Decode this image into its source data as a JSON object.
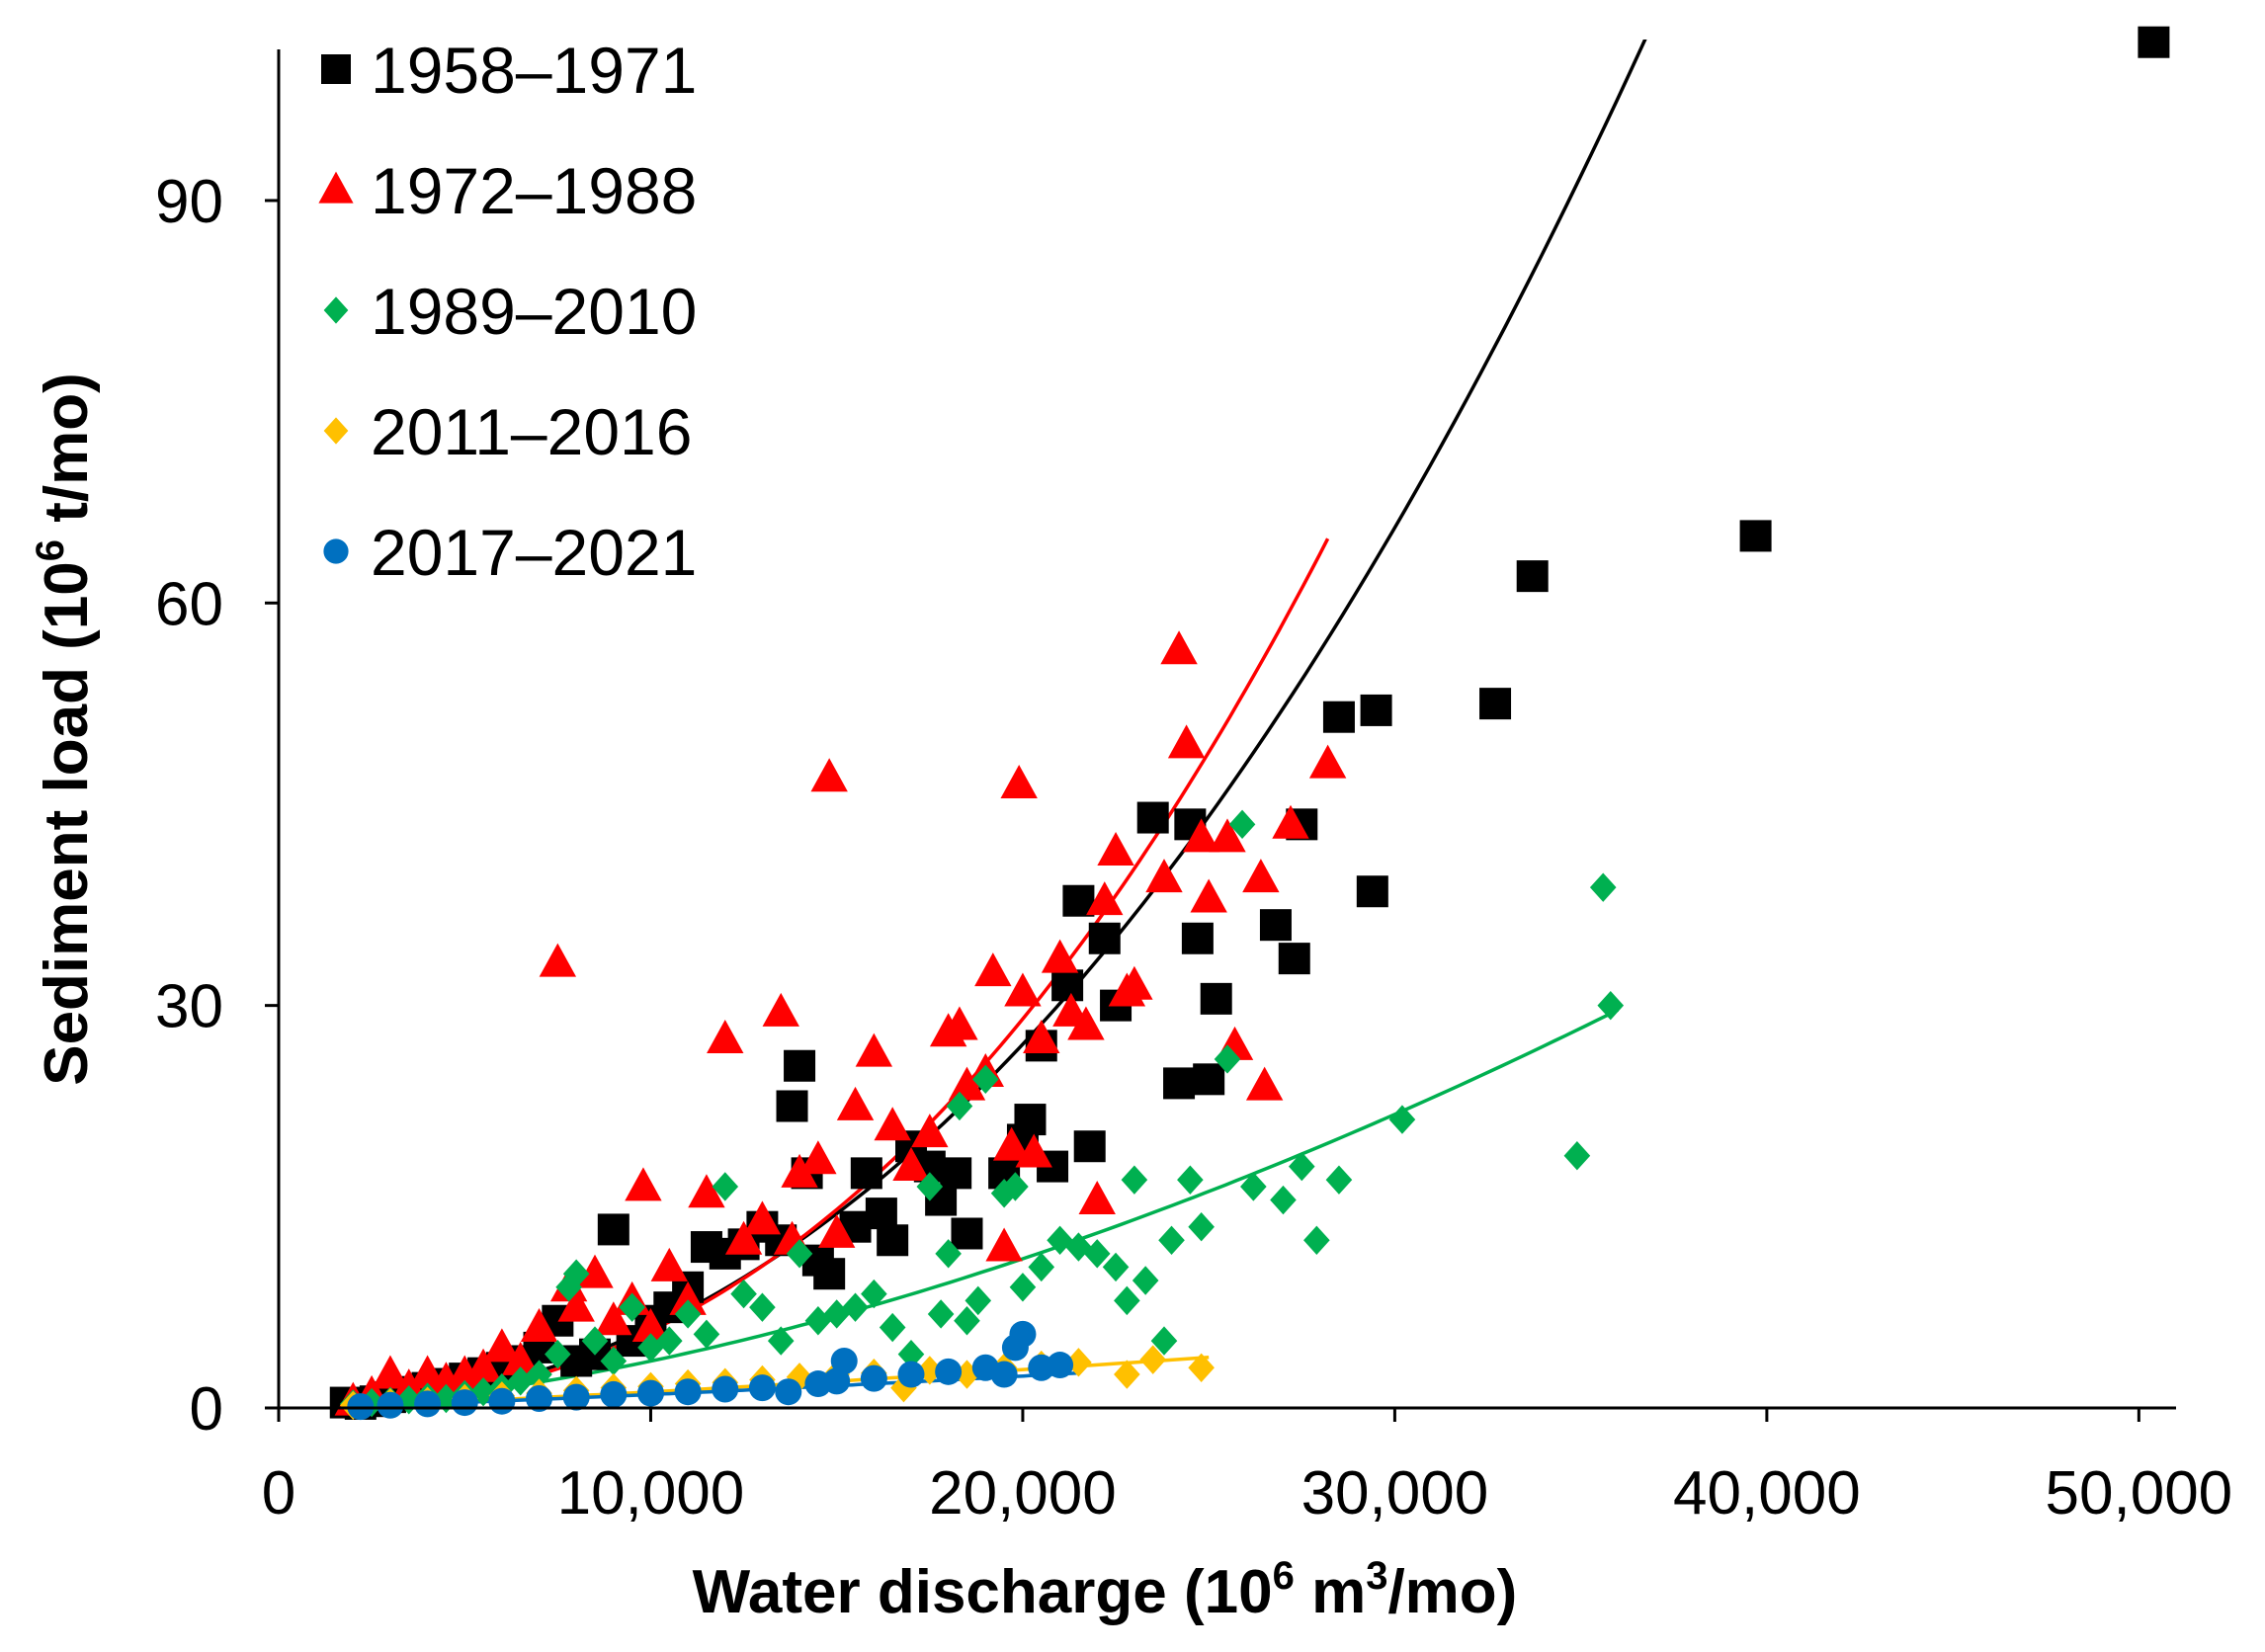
{
  "chart_data": {
    "type": "scatter",
    "xlabel": {
      "main": "Water discharge (10",
      "sup1": "6",
      "mid": " m",
      "sup2": "3",
      "end": "/mo)"
    },
    "ylabel": {
      "main": "Sediment load (10",
      "sup1": "6",
      "end": " t/mo)"
    },
    "xlim": [
      0,
      51000
    ],
    "ylim": [
      0,
      102
    ],
    "xticks": [
      0,
      10000,
      20000,
      30000,
      40000,
      50000
    ],
    "xtick_labels": [
      "0",
      "10,000",
      "20,000",
      "30,000",
      "40,000",
      "50,000"
    ],
    "yticks": [
      0,
      30,
      60,
      90
    ],
    "ytick_labels": [
      "0",
      "30",
      "60",
      "90"
    ],
    "legend_position": "top-left",
    "series": [
      {
        "name": "1958–1971",
        "color": "#000000",
        "marker": "square",
        "trend": {
          "a": 1.14e-08,
          "b": 2.18,
          "x_range": [
            1800,
            42000
          ]
        },
        "points": [
          [
            1800,
            0.4
          ],
          [
            2200,
            0.3
          ],
          [
            2600,
            0.5
          ],
          [
            3000,
            0.8
          ],
          [
            3500,
            1.2
          ],
          [
            4000,
            1.5
          ],
          [
            4500,
            1.8
          ],
          [
            5000,
            2.2
          ],
          [
            5500,
            2.6
          ],
          [
            6000,
            3.0
          ],
          [
            6500,
            3.5
          ],
          [
            7000,
            4.5
          ],
          [
            7500,
            6.5
          ],
          [
            8000,
            3.5
          ],
          [
            8500,
            4.0
          ],
          [
            9000,
            13.3
          ],
          [
            9500,
            5.0
          ],
          [
            10000,
            6.5
          ],
          [
            10500,
            7.5
          ],
          [
            11000,
            9.0
          ],
          [
            11500,
            12.0
          ],
          [
            12000,
            11.5
          ],
          [
            12500,
            12.2
          ],
          [
            13000,
            13.5
          ],
          [
            13500,
            12.5
          ],
          [
            13800,
            22.5
          ],
          [
            14000,
            25.5
          ],
          [
            14200,
            17.5
          ],
          [
            14500,
            11.0
          ],
          [
            14800,
            10.0
          ],
          [
            15500,
            13.5
          ],
          [
            15800,
            17.5
          ],
          [
            16200,
            14.5
          ],
          [
            16500,
            12.5
          ],
          [
            17000,
            19.5
          ],
          [
            17500,
            18.0
          ],
          [
            17800,
            15.5
          ],
          [
            18200,
            17.5
          ],
          [
            18500,
            13.0
          ],
          [
            19500,
            17.5
          ],
          [
            20000,
            20.0
          ],
          [
            20200,
            21.5
          ],
          [
            20500,
            27.0
          ],
          [
            20800,
            18.0
          ],
          [
            21200,
            31.5
          ],
          [
            21500,
            37.8
          ],
          [
            21800,
            19.5
          ],
          [
            22200,
            35.0
          ],
          [
            22500,
            30.0
          ],
          [
            23500,
            44.0
          ],
          [
            24200,
            24.2
          ],
          [
            24500,
            43.5
          ],
          [
            24700,
            35.0
          ],
          [
            25000,
            24.5
          ],
          [
            25200,
            30.5
          ],
          [
            26800,
            36.0
          ],
          [
            27300,
            33.5
          ],
          [
            27500,
            43.5
          ],
          [
            28500,
            51.5
          ],
          [
            29400,
            38.5
          ],
          [
            29500,
            52.0
          ],
          [
            32700,
            52.5
          ],
          [
            33700,
            62.0
          ],
          [
            39700,
            65.0
          ],
          [
            50400,
            101.8
          ]
        ]
      },
      {
        "name": "1972–1988",
        "color": "#ff0000",
        "marker": "triangle",
        "trend": {
          "a": 2.5e-09,
          "b": 2.34,
          "x_range": [
            1800,
            28200
          ]
        },
        "points": [
          [
            2000,
            0.5
          ],
          [
            2500,
            1.0
          ],
          [
            3000,
            2.5
          ],
          [
            3500,
            1.5
          ],
          [
            4000,
            2.5
          ],
          [
            4500,
            2.0
          ],
          [
            5000,
            2.5
          ],
          [
            5500,
            3.0
          ],
          [
            6000,
            4.5
          ],
          [
            6500,
            3.5
          ],
          [
            7000,
            6.0
          ],
          [
            7500,
            33.2
          ],
          [
            7800,
            9.0
          ],
          [
            8000,
            7.5
          ],
          [
            8500,
            10.0
          ],
          [
            9000,
            6.5
          ],
          [
            9500,
            8.0
          ],
          [
            9800,
            16.5
          ],
          [
            10000,
            6.0
          ],
          [
            10500,
            10.5
          ],
          [
            11000,
            8.0
          ],
          [
            11500,
            16.0
          ],
          [
            12000,
            27.5
          ],
          [
            12500,
            12.5
          ],
          [
            13000,
            14.0
          ],
          [
            13500,
            29.5
          ],
          [
            13800,
            12.5
          ],
          [
            14000,
            17.5
          ],
          [
            14500,
            18.5
          ],
          [
            14800,
            47.0
          ],
          [
            15000,
            13.0
          ],
          [
            15500,
            22.5
          ],
          [
            16000,
            26.5
          ],
          [
            16500,
            21.0
          ],
          [
            17000,
            18.0
          ],
          [
            17500,
            20.5
          ],
          [
            18000,
            28.0
          ],
          [
            18300,
            28.5
          ],
          [
            18500,
            24.0
          ],
          [
            19000,
            25.0
          ],
          [
            19200,
            32.5
          ],
          [
            19500,
            12.0
          ],
          [
            19700,
            19.5
          ],
          [
            19900,
            46.5
          ],
          [
            20000,
            31.0
          ],
          [
            20300,
            19.0
          ],
          [
            20500,
            27.5
          ],
          [
            21000,
            33.5
          ],
          [
            21300,
            29.5
          ],
          [
            21700,
            28.5
          ],
          [
            22000,
            15.5
          ],
          [
            22200,
            37.8
          ],
          [
            22500,
            41.5
          ],
          [
            22800,
            31.0
          ],
          [
            23000,
            31.5
          ],
          [
            23800,
            39.5
          ],
          [
            24200,
            56.5
          ],
          [
            24400,
            49.5
          ],
          [
            24800,
            42.5
          ],
          [
            25000,
            38.0
          ],
          [
            25500,
            42.5
          ],
          [
            25700,
            27.0
          ],
          [
            26400,
            39.5
          ],
          [
            26500,
            24.0
          ],
          [
            27200,
            43.5
          ],
          [
            28200,
            48.0
          ]
        ]
      },
      {
        "name": "1989–2010",
        "color": "#00b050",
        "marker": "diamond",
        "trend": {
          "a": 7.3e-07,
          "b": 1.67,
          "x_range": [
            1800,
            36000
          ]
        },
        "points": [
          [
            2000,
            0.3
          ],
          [
            2500,
            0.4
          ],
          [
            3000,
            0.5
          ],
          [
            3500,
            0.6
          ],
          [
            4000,
            0.8
          ],
          [
            4500,
            0.7
          ],
          [
            5000,
            1.0
          ],
          [
            5500,
            1.2
          ],
          [
            6000,
            1.5
          ],
          [
            6500,
            2.0
          ],
          [
            7000,
            2.5
          ],
          [
            7500,
            4.0
          ],
          [
            7800,
            9.0
          ],
          [
            8000,
            10.0
          ],
          [
            8500,
            5.0
          ],
          [
            9000,
            3.5
          ],
          [
            9500,
            7.5
          ],
          [
            10000,
            4.5
          ],
          [
            10500,
            5.0
          ],
          [
            11000,
            7.0
          ],
          [
            11500,
            5.5
          ],
          [
            12000,
            16.5
          ],
          [
            12500,
            8.5
          ],
          [
            13000,
            7.5
          ],
          [
            13500,
            5.0
          ],
          [
            14000,
            11.5
          ],
          [
            14500,
            6.5
          ],
          [
            15000,
            7.0
          ],
          [
            15500,
            7.5
          ],
          [
            16000,
            8.5
          ],
          [
            16500,
            6.0
          ],
          [
            17000,
            4.0
          ],
          [
            17500,
            16.5
          ],
          [
            17800,
            7.0
          ],
          [
            18000,
            11.5
          ],
          [
            18300,
            22.5
          ],
          [
            18500,
            6.5
          ],
          [
            18800,
            8.0
          ],
          [
            19000,
            24.5
          ],
          [
            19500,
            16.0
          ],
          [
            19800,
            16.5
          ],
          [
            20000,
            9.0
          ],
          [
            20500,
            10.5
          ],
          [
            21000,
            12.5
          ],
          [
            21500,
            12.0
          ],
          [
            22000,
            11.5
          ],
          [
            22500,
            10.5
          ],
          [
            22800,
            8.0
          ],
          [
            23000,
            17.0
          ],
          [
            23300,
            9.5
          ],
          [
            23800,
            5.0
          ],
          [
            24000,
            12.5
          ],
          [
            24500,
            17.0
          ],
          [
            24800,
            13.5
          ],
          [
            25500,
            26.0
          ],
          [
            25900,
            43.5
          ],
          [
            26200,
            16.5
          ],
          [
            27000,
            15.5
          ],
          [
            27500,
            18.0
          ],
          [
            27900,
            12.5
          ],
          [
            28500,
            17.0
          ],
          [
            30200,
            21.5
          ],
          [
            34900,
            18.8
          ],
          [
            35600,
            38.8
          ],
          [
            35800,
            30.0
          ]
        ]
      },
      {
        "name": "2011–2016",
        "color": "#ffc000",
        "marker": "diamond",
        "trend": {
          "a": 1.2e-05,
          "b": 1.25,
          "x_range": [
            1800,
            25000
          ]
        },
        "points": [
          [
            2000,
            0.2
          ],
          [
            3000,
            0.4
          ],
          [
            4000,
            0.5
          ],
          [
            5000,
            0.7
          ],
          [
            6000,
            0.9
          ],
          [
            7000,
            1.1
          ],
          [
            8000,
            1.3
          ],
          [
            9000,
            1.5
          ],
          [
            10000,
            1.6
          ],
          [
            11000,
            1.8
          ],
          [
            12000,
            1.9
          ],
          [
            13000,
            2.1
          ],
          [
            14000,
            2.3
          ],
          [
            15000,
            2.5
          ],
          [
            16000,
            2.6
          ],
          [
            16800,
            1.5
          ],
          [
            17500,
            2.8
          ],
          [
            18500,
            2.5
          ],
          [
            19500,
            3.0
          ],
          [
            20500,
            3.2
          ],
          [
            21500,
            3.4
          ],
          [
            22800,
            2.5
          ],
          [
            23500,
            3.6
          ],
          [
            24800,
            3.0
          ]
        ]
      },
      {
        "name": "2017–2021",
        "color": "#0070c0",
        "marker": "circle",
        "trend": {
          "a": 1e-05,
          "b": 1.25,
          "x_range": [
            1800,
            21500
          ]
        },
        "points": [
          [
            2200,
            0.1
          ],
          [
            3000,
            0.2
          ],
          [
            4000,
            0.3
          ],
          [
            5000,
            0.4
          ],
          [
            6000,
            0.5
          ],
          [
            7000,
            0.7
          ],
          [
            8000,
            0.8
          ],
          [
            9000,
            1.0
          ],
          [
            10000,
            1.1
          ],
          [
            11000,
            1.2
          ],
          [
            12000,
            1.4
          ],
          [
            13000,
            1.5
          ],
          [
            13700,
            1.2
          ],
          [
            14500,
            1.8
          ],
          [
            15000,
            2.0
          ],
          [
            15200,
            3.5
          ],
          [
            16000,
            2.2
          ],
          [
            17000,
            2.5
          ],
          [
            18000,
            2.7
          ],
          [
            19000,
            3.0
          ],
          [
            19500,
            2.5
          ],
          [
            19800,
            4.5
          ],
          [
            20000,
            5.5
          ],
          [
            20500,
            3.0
          ],
          [
            21000,
            3.2
          ]
        ]
      }
    ]
  }
}
